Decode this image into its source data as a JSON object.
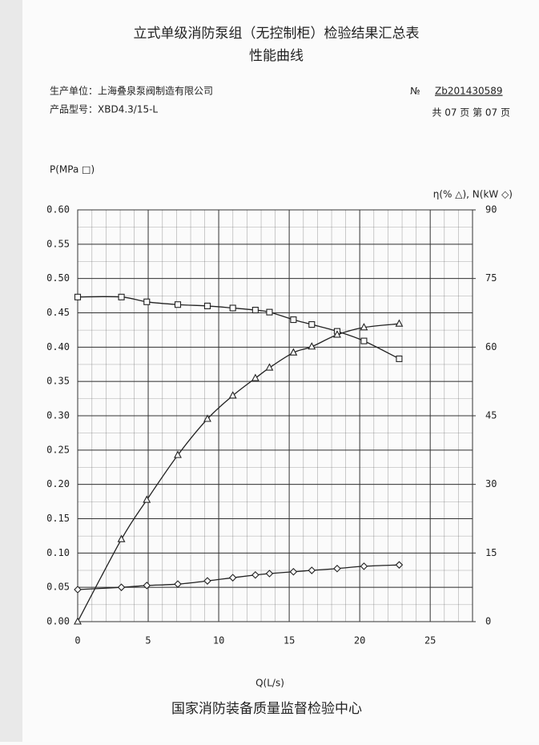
{
  "header": {
    "title": "立式单级消防泵组（无控制柜）检验结果汇总表",
    "subtitle": "性能曲线",
    "manufacturer": "生产单位：上海叠泉泵阀制造有限公司",
    "model": "产品型号：XBD4.3/15-L",
    "number_sign": "№",
    "number": "Zb201430589",
    "pages": "共 07 页  第 07 页"
  },
  "footer": "国家消防装备质量监督检验中心",
  "chart_data": {
    "type": "line",
    "y_label": "P(MPa □)",
    "y2_label": "η(% △), N(kW ◇)",
    "x_label": "Q(L/s)",
    "x": [
      0,
      3.1,
      4.9,
      7.1,
      9.2,
      11.0,
      12.6,
      13.6,
      15.3,
      16.6,
      18.4,
      20.3,
      22.8
    ],
    "series": [
      {
        "color": "#222222",
        "marker": "square",
        "values": [
          0.473,
          0.473,
          0.466,
          0.462,
          0.46,
          0.457,
          0.454,
          0.451,
          0.44,
          0.433,
          0.423,
          0.409,
          0.383
        ]
      },
      {
        "color": "#222222",
        "marker": "triangle",
        "axis": "y2",
        "values": [
          0,
          18.0,
          26.6,
          36.4,
          44.3,
          49.4,
          53.2,
          55.5,
          58.8,
          60.1,
          62.7,
          64.3,
          65.1
        ]
      },
      {
        "color": "#222222",
        "marker": "diamond",
        "axis": "y2",
        "values": [
          7.0,
          7.5,
          7.9,
          8.2,
          8.9,
          9.6,
          10.2,
          10.5,
          10.9,
          11.2,
          11.6,
          12.1,
          12.4
        ]
      }
    ],
    "xlim": [
      0,
      28
    ],
    "xticks": [
      0,
      5,
      10,
      15,
      20,
      25
    ],
    "ylim": [
      0,
      0.6
    ],
    "yticks": [
      {
        "value": 0,
        "label": "0.00"
      },
      {
        "value": 0.05,
        "label": "0.05"
      },
      {
        "value": 0.1,
        "label": "0.10"
      },
      {
        "value": 0.15,
        "label": "0.15"
      },
      {
        "value": 0.2,
        "label": "0.20"
      },
      {
        "value": 0.25,
        "label": "0.25"
      },
      {
        "value": 0.3,
        "label": "0.30"
      },
      {
        "value": 0.35,
        "label": "0.35"
      },
      {
        "value": 0.4,
        "label": "0.40"
      },
      {
        "value": 0.45,
        "label": "0.45"
      },
      {
        "value": 0.5,
        "label": "0.50"
      },
      {
        "value": 0.55,
        "label": "0.55"
      },
      {
        "value": 0.6,
        "label": "0.60"
      }
    ],
    "y2lim": [
      0,
      90
    ],
    "y2ticks": [
      0,
      15,
      30,
      45,
      60,
      75,
      90
    ],
    "grid": true
  }
}
